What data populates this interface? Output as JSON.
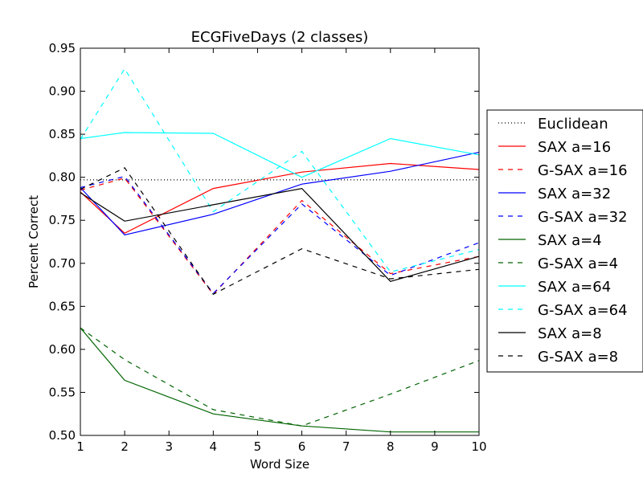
{
  "chart_data": {
    "type": "line",
    "title": "ECGFiveDays (2 classes)",
    "xlabel": "Word Size",
    "ylabel": "Percent Correct",
    "xlim": [
      1,
      10
    ],
    "ylim": [
      0.5,
      0.95
    ],
    "xticks": [
      "1",
      "2",
      "3",
      "4",
      "5",
      "6",
      "7",
      "8",
      "9",
      "10"
    ],
    "yticks": [
      "0.50",
      "0.55",
      "0.60",
      "0.65",
      "0.70",
      "0.75",
      "0.80",
      "0.85",
      "0.90",
      "0.95"
    ],
    "grid": false,
    "legend_position": "outside-right",
    "x": [
      1,
      2,
      4,
      6,
      8,
      10
    ],
    "series": [
      {
        "name": "Euclidean",
        "color": "#000000",
        "style": "dotted",
        "values": [
          0.797,
          0.797,
          0.797,
          0.797,
          0.797,
          0.797
        ]
      },
      {
        "name": "SAX a=16",
        "color": "#ff0000",
        "style": "solid",
        "values": [
          0.783,
          0.735,
          0.787,
          0.806,
          0.816,
          0.809
        ]
      },
      {
        "name": "G-SAX a=16",
        "color": "#ff0000",
        "style": "dashed",
        "values": [
          0.785,
          0.799,
          0.664,
          0.773,
          0.688,
          0.708
        ]
      },
      {
        "name": "SAX a=32",
        "color": "#0000ff",
        "style": "solid",
        "values": [
          0.788,
          0.733,
          0.757,
          0.792,
          0.807,
          0.829
        ]
      },
      {
        "name": "G-SAX a=32",
        "color": "#0000ff",
        "style": "dashed",
        "values": [
          0.788,
          0.801,
          0.665,
          0.769,
          0.686,
          0.724
        ]
      },
      {
        "name": "SAX a=4",
        "color": "#006400",
        "style": "solid",
        "values": [
          0.625,
          0.564,
          0.525,
          0.511,
          0.504,
          0.504
        ]
      },
      {
        "name": "G-SAX a=4",
        "color": "#006400",
        "style": "dashed",
        "values": [
          0.625,
          0.588,
          0.53,
          0.511,
          0.548,
          0.587
        ]
      },
      {
        "name": "SAX a=64",
        "color": "#00ffff",
        "style": "solid",
        "values": [
          0.845,
          0.852,
          0.851,
          0.8,
          0.845,
          0.826
        ]
      },
      {
        "name": "G-SAX a=64",
        "color": "#00ffff",
        "style": "dashed",
        "values": [
          0.844,
          0.926,
          0.76,
          0.83,
          0.69,
          0.716
        ]
      },
      {
        "name": "SAX a=8",
        "color": "#000000",
        "style": "solid",
        "values": [
          0.782,
          0.749,
          0.768,
          0.787,
          0.679,
          0.708
        ]
      },
      {
        "name": "G-SAX a=8",
        "color": "#000000",
        "style": "dashed",
        "values": [
          0.786,
          0.811,
          0.664,
          0.717,
          0.682,
          0.693
        ]
      }
    ]
  }
}
